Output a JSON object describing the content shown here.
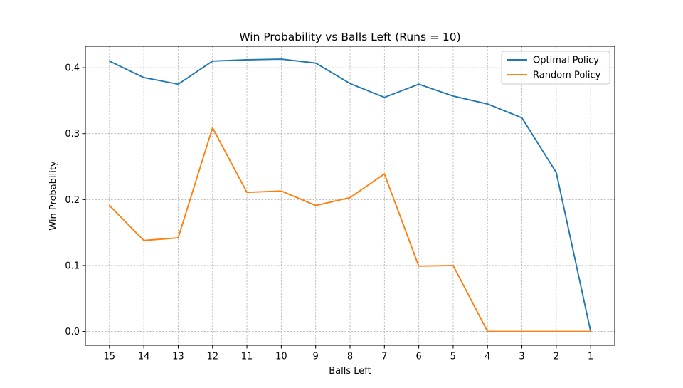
{
  "chart_data": {
    "type": "line",
    "title": "Win Probability vs Balls Left (Runs = 10)",
    "xlabel": "Balls Left",
    "ylabel": "Win Probability",
    "categories": [
      "15",
      "14",
      "13",
      "12",
      "11",
      "10",
      "9",
      "8",
      "7",
      "6",
      "5",
      "4",
      "3",
      "2",
      "1"
    ],
    "x": [
      15,
      14,
      13,
      12,
      11,
      10,
      9,
      8,
      7,
      6,
      5,
      4,
      3,
      2,
      1
    ],
    "xlim": [
      15.7,
      0.3
    ],
    "ylim": [
      -0.021,
      0.4325
    ],
    "yticks": [
      0.0,
      0.1,
      0.2,
      0.3,
      0.4
    ],
    "ytick_labels": [
      "0.0",
      "0.1",
      "0.2",
      "0.3",
      "0.4"
    ],
    "grid": true,
    "legend_position": "top-right",
    "series": [
      {
        "name": "Optimal Policy",
        "color": "#1f77b4",
        "values": [
          0.41,
          0.385,
          0.375,
          0.41,
          0.412,
          0.413,
          0.407,
          0.376,
          0.355,
          0.375,
          0.357,
          0.345,
          0.324,
          0.241,
          0.0
        ]
      },
      {
        "name": "Random Policy",
        "color": "#ff7f0e",
        "values": [
          0.191,
          0.138,
          0.142,
          0.309,
          0.211,
          0.213,
          0.191,
          0.203,
          0.239,
          0.099,
          0.1,
          0.0,
          0.0,
          0.0,
          0.0
        ]
      }
    ]
  }
}
